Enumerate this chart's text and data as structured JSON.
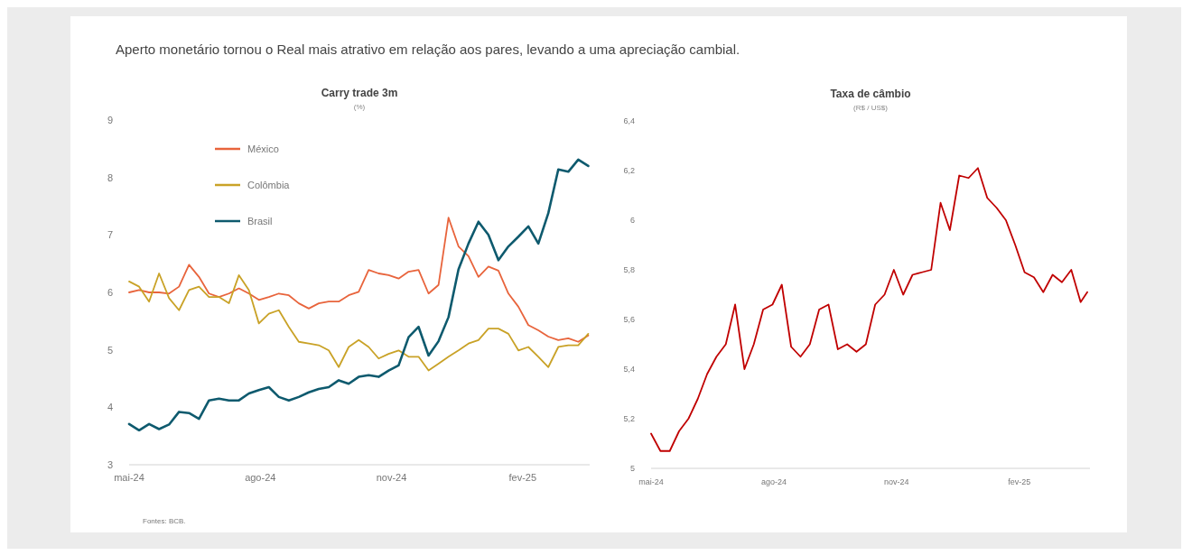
{
  "chart_data": [
    {
      "type": "line",
      "title": "Carry trade 3m",
      "subtitle": "(%)",
      "annotations": [
        "Aperto monetário tornou o Real mais atrativo em relação aos pares, levando a uma apreciação cambial.",
        "Fontes: BCB."
      ],
      "x": [
        "2024-05-01",
        "2024-05-08",
        "2024-05-15",
        "2024-05-22",
        "2024-05-29",
        "2024-06-05",
        "2024-06-12",
        "2024-06-19",
        "2024-06-26",
        "2024-07-03",
        "2024-07-10",
        "2024-07-17",
        "2024-07-24",
        "2024-07-31",
        "2024-08-07",
        "2024-08-14",
        "2024-08-21",
        "2024-08-28",
        "2024-09-04",
        "2024-09-11",
        "2024-09-18",
        "2024-09-25",
        "2024-10-02",
        "2024-10-09",
        "2024-10-16",
        "2024-10-23",
        "2024-10-30",
        "2024-11-06",
        "2024-11-13",
        "2024-11-20",
        "2024-11-27",
        "2024-12-04",
        "2024-12-11",
        "2024-12-18",
        "2024-12-25",
        "2025-01-01",
        "2025-01-08",
        "2025-01-15",
        "2025-01-22",
        "2025-01-29",
        "2025-02-05",
        "2025-02-12",
        "2025-02-19",
        "2025-02-26",
        "2025-03-05",
        "2025-03-12",
        "2025-03-19"
      ],
      "xlim": [
        "2024-05-01",
        "2025-03-20"
      ],
      "xticks": [
        {
          "value": "2024-05-01",
          "label": "mai-24"
        },
        {
          "value": "2024-08-01",
          "label": "ago-24"
        },
        {
          "value": "2024-11-01",
          "label": "nov-24"
        },
        {
          "value": "2025-02-01",
          "label": "fev-25"
        }
      ],
      "ylim": [
        3,
        9
      ],
      "yticks": [
        3,
        4,
        5,
        6,
        7,
        8,
        9
      ],
      "grid": false,
      "legend": "top left",
      "line_style": "solid",
      "series": [
        {
          "name": "México",
          "color": "#e8643c",
          "values": [
            6.0,
            6.04,
            6.0,
            6.0,
            5.98,
            6.1,
            6.48,
            6.27,
            5.98,
            5.92,
            5.98,
            6.07,
            5.98,
            5.87,
            5.92,
            5.98,
            5.95,
            5.81,
            5.72,
            5.81,
            5.84,
            5.84,
            5.95,
            6.01,
            6.39,
            6.33,
            6.3,
            6.24,
            6.36,
            6.39,
            5.98,
            6.13,
            7.3,
            6.8,
            6.63,
            6.27,
            6.45,
            6.38,
            5.98,
            5.75,
            5.43,
            5.34,
            5.23,
            5.17,
            5.2,
            5.14,
            5.25
          ]
        },
        {
          "name": "Colômbia",
          "color": "#c9a227",
          "values": [
            6.19,
            6.1,
            5.84,
            6.33,
            5.9,
            5.69,
            6.04,
            6.1,
            5.92,
            5.92,
            5.81,
            6.3,
            6.04,
            5.46,
            5.63,
            5.69,
            5.4,
            5.14,
            5.11,
            5.08,
            4.99,
            4.7,
            5.05,
            5.17,
            5.05,
            4.85,
            4.93,
            4.99,
            4.88,
            4.88,
            4.64,
            4.76,
            4.88,
            4.99,
            5.11,
            5.17,
            5.37,
            5.37,
            5.28,
            4.99,
            5.05,
            4.88,
            4.7,
            5.05,
            5.08,
            5.08,
            5.28
          ]
        },
        {
          "name": "Brasil",
          "color": "#0e5a6e",
          "values": [
            3.71,
            3.6,
            3.71,
            3.62,
            3.7,
            3.92,
            3.9,
            3.8,
            4.12,
            4.15,
            4.12,
            4.12,
            4.24,
            4.3,
            4.35,
            4.18,
            4.12,
            4.18,
            4.26,
            4.32,
            4.35,
            4.47,
            4.41,
            4.53,
            4.56,
            4.53,
            4.64,
            4.73,
            5.22,
            5.4,
            4.9,
            5.15,
            5.57,
            6.4,
            6.85,
            7.23,
            7.0,
            6.56,
            6.8,
            6.97,
            7.15,
            6.85,
            7.38,
            8.14,
            8.1,
            8.31,
            8.2
          ]
        }
      ]
    },
    {
      "type": "line",
      "title": "Taxa de câmbio",
      "subtitle": "(R$ / US$)",
      "x": [
        "2024-05-01",
        "2024-05-08",
        "2024-05-15",
        "2024-05-22",
        "2024-05-29",
        "2024-06-05",
        "2024-06-12",
        "2024-06-19",
        "2024-06-26",
        "2024-07-03",
        "2024-07-10",
        "2024-07-17",
        "2024-07-24",
        "2024-07-31",
        "2024-08-07",
        "2024-08-14",
        "2024-08-21",
        "2024-08-28",
        "2024-09-04",
        "2024-09-11",
        "2024-09-18",
        "2024-09-25",
        "2024-10-02",
        "2024-10-09",
        "2024-10-16",
        "2024-10-23",
        "2024-10-30",
        "2024-11-06",
        "2024-11-13",
        "2024-11-20",
        "2024-11-27",
        "2024-12-04",
        "2024-12-11",
        "2024-12-18",
        "2024-12-25",
        "2025-01-01",
        "2025-01-08",
        "2025-01-15",
        "2025-01-22",
        "2025-01-29",
        "2025-02-05",
        "2025-02-12",
        "2025-02-19",
        "2025-02-26",
        "2025-03-05",
        "2025-03-12",
        "2025-03-19",
        "2025-03-24"
      ],
      "xlim": [
        "2024-05-01",
        "2025-03-26"
      ],
      "xticks": [
        {
          "value": "2024-05-01",
          "label": "mai-24"
        },
        {
          "value": "2024-08-01",
          "label": "ago-24"
        },
        {
          "value": "2024-11-01",
          "label": "nov-24"
        },
        {
          "value": "2025-02-01",
          "label": "fev-25"
        }
      ],
      "ylim": [
        5,
        6.4
      ],
      "yticks": [
        5,
        {
          "value": 5.2,
          "label": "5,2"
        },
        {
          "value": 5.4,
          "label": "5,4"
        },
        {
          "value": 5.6,
          "label": "5,6"
        },
        {
          "value": 5.8,
          "label": "5,8"
        },
        6,
        {
          "value": 6.2,
          "label": "6,2"
        },
        {
          "value": 6.4,
          "label": "6,4"
        }
      ],
      "grid": false,
      "line_style": "solid",
      "series": [
        {
          "color": "#c00000",
          "values": [
            5.14,
            5.07,
            5.07,
            5.15,
            5.2,
            5.28,
            5.38,
            5.45,
            5.5,
            5.66,
            5.4,
            5.5,
            5.64,
            5.66,
            5.74,
            5.49,
            5.45,
            5.5,
            5.64,
            5.66,
            5.48,
            5.5,
            5.47,
            5.5,
            5.66,
            5.7,
            5.8,
            5.7,
            5.78,
            5.79,
            5.8,
            6.07,
            5.96,
            6.18,
            6.17,
            6.21,
            6.09,
            6.05,
            6.0,
            5.9,
            5.79,
            5.77,
            5.71,
            5.78,
            5.75,
            5.8,
            5.67,
            5.71
          ]
        }
      ]
    }
  ]
}
